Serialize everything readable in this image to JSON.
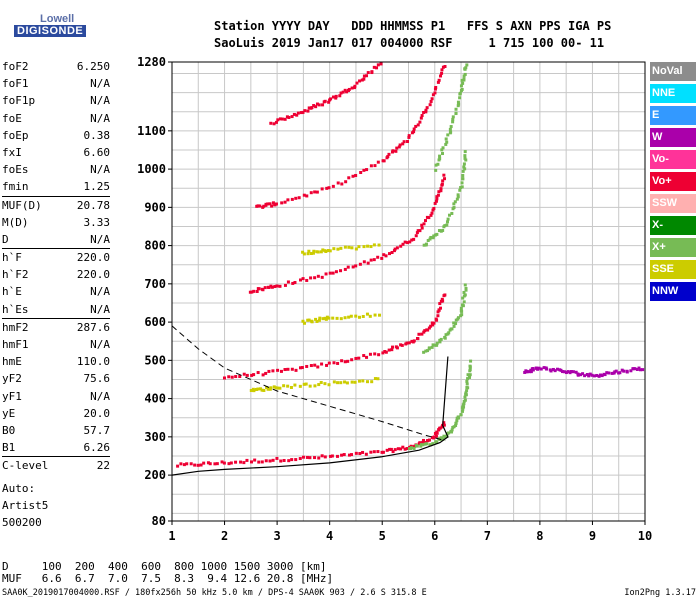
{
  "logo": {
    "line1": "Lowell",
    "line2": "DIGISONDE"
  },
  "header": {
    "line1": "Station YYYY DAY   DDD HHMMSS P1   FFS S AXN PPS IGA PS",
    "line2": "SaoLuis 2019 Jan17 017 004000 RSF     1 715 100 00- 11"
  },
  "params": [
    {
      "name": "foF2",
      "value": "6.250"
    },
    {
      "name": "foF1",
      "value": "N/A"
    },
    {
      "name": "foF1p",
      "value": "N/A"
    },
    {
      "name": "foE",
      "value": "N/A"
    },
    {
      "name": "foEp",
      "value": "0.38"
    },
    {
      "name": "fxI",
      "value": "6.60"
    },
    {
      "name": "foEs",
      "value": "N/A"
    },
    {
      "name": "fmin",
      "value": "1.25"
    },
    {
      "name": "MUF(D)",
      "value": "20.78",
      "sep": true
    },
    {
      "name": "M(D)",
      "value": "3.33"
    },
    {
      "name": "D",
      "value": "N/A"
    },
    {
      "name": "h`F",
      "value": "220.0",
      "sep": true
    },
    {
      "name": "h`F2",
      "value": "220.0"
    },
    {
      "name": "h`E",
      "value": "N/A"
    },
    {
      "name": "h`Es",
      "value": "N/A"
    },
    {
      "name": "hmF2",
      "value": "287.6",
      "sep": true
    },
    {
      "name": "hmF1",
      "value": "N/A"
    },
    {
      "name": "hmE",
      "value": "110.0"
    },
    {
      "name": "yF2",
      "value": "75.6"
    },
    {
      "name": "yF1",
      "value": "N/A"
    },
    {
      "name": "yE",
      "value": "20.0"
    },
    {
      "name": "B0",
      "value": "57.7"
    },
    {
      "name": "B1",
      "value": "6.26"
    },
    {
      "name": "C-level",
      "value": "22",
      "sep": true
    }
  ],
  "auto": [
    "Auto:",
    "Artist5",
    "500200"
  ],
  "legend": [
    {
      "label": "NoVal",
      "color": "#8c8c8c"
    },
    {
      "label": "NNE",
      "color": "#00e0ff"
    },
    {
      "label": "E",
      "color": "#3399ff"
    },
    {
      "label": "W",
      "color": "#aa00aa"
    },
    {
      "label": "Vo-",
      "color": "#ff3399"
    },
    {
      "label": "Vo+",
      "color": "#ee0033"
    },
    {
      "label": "SSW",
      "color": "#ffb0b0"
    },
    {
      "label": "X-",
      "color": "#008800"
    },
    {
      "label": "X+",
      "color": "#77bb55"
    },
    {
      "label": "SSE",
      "color": "#cccc00"
    },
    {
      "label": "NNW",
      "color": "#0000cc"
    }
  ],
  "footer": {
    "d_row": "D     100  200  400  600  800 1000 1500 3000 [km]",
    "muf_row": "MUF   6.6  6.7  7.0  7.5  8.3  9.4 12.6 20.8 [MHz]"
  },
  "bottom_line": "SAA0K_2019017004000.RSF / 180fx256h 50 kHz 5.0 km / DPS-4 SAA0K 903 / 2.6 S 315.8 E",
  "version": "Ion2Png 1.3.17",
  "chart_data": {
    "type": "scatter",
    "xlim": [
      1,
      10
    ],
    "ylim": [
      80,
      1280
    ],
    "x_ticks": [
      1,
      2,
      3,
      4,
      5,
      6,
      7,
      8,
      9,
      10
    ],
    "y_ticks": [
      80,
      200,
      300,
      400,
      500,
      600,
      700,
      800,
      900,
      1000,
      1100,
      1280
    ],
    "grid": true,
    "series": [
      {
        "name": "Vo+",
        "color": "#ee0033",
        "traces": [
          [
            [
              1.1,
              225
            ],
            [
              2,
              232
            ],
            [
              3,
              240
            ],
            [
              4,
              248
            ],
            [
              5,
              260
            ],
            [
              5.6,
              275
            ],
            [
              6.0,
              300
            ],
            [
              6.2,
              340
            ]
          ],
          [
            [
              2,
              455
            ],
            [
              3,
              470
            ],
            [
              4,
              490
            ],
            [
              5,
              520
            ],
            [
              5.6,
              550
            ],
            [
              6.0,
              600
            ],
            [
              6.2,
              680
            ]
          ],
          [
            [
              2.5,
              680
            ],
            [
              3,
              695
            ],
            [
              4,
              725
            ],
            [
              5,
              770
            ],
            [
              5.6,
              820
            ],
            [
              6.0,
              900
            ],
            [
              6.2,
              990
            ]
          ],
          [
            [
              2.6,
              900
            ],
            [
              3,
              910
            ],
            [
              4,
              950
            ],
            [
              5,
              1020
            ],
            [
              5.5,
              1080
            ],
            [
              5.9,
              1170
            ],
            [
              6.2,
              1280
            ]
          ],
          [
            [
              2.9,
              1120
            ],
            [
              3.5,
              1150
            ],
            [
              4,
              1180
            ],
            [
              4.5,
              1220
            ],
            [
              5,
              1280
            ]
          ]
        ]
      },
      {
        "name": "X+",
        "color": "#77bb55",
        "traces": [
          [
            [
              5.5,
              270
            ],
            [
              6,
              285
            ],
            [
              6.3,
              310
            ],
            [
              6.5,
              360
            ],
            [
              6.6,
              420
            ],
            [
              6.7,
              500
            ]
          ],
          [
            [
              5.8,
              520
            ],
            [
              6.2,
              560
            ],
            [
              6.5,
              620
            ],
            [
              6.6,
              700
            ]
          ],
          [
            [
              5.8,
              800
            ],
            [
              6.2,
              850
            ],
            [
              6.5,
              950
            ],
            [
              6.6,
              1050
            ]
          ],
          [
            [
              6.0,
              1000
            ],
            [
              6.3,
              1100
            ],
            [
              6.5,
              1200
            ],
            [
              6.6,
              1280
            ]
          ]
        ]
      },
      {
        "name": "SSE",
        "color": "#cccc00",
        "traces": [
          [
            [
              2.5,
              420
            ],
            [
              3,
              430
            ],
            [
              4,
              440
            ],
            [
              5,
              450
            ]
          ],
          [
            [
              3.5,
              600
            ],
            [
              4,
              610
            ],
            [
              5,
              620
            ]
          ],
          [
            [
              3.5,
              780
            ],
            [
              4,
              790
            ],
            [
              5,
              800
            ]
          ]
        ]
      },
      {
        "name": "W",
        "color": "#aa00aa",
        "traces": [
          [
            [
              7.7,
              470
            ],
            [
              8,
              480
            ],
            [
              8.5,
              470
            ],
            [
              9,
              460
            ],
            [
              9.5,
              470
            ],
            [
              10,
              480
            ]
          ]
        ]
      }
    ],
    "profile_curve": [
      [
        1,
        200
      ],
      [
        1.5,
        210
      ],
      [
        2,
        215
      ],
      [
        3,
        222
      ],
      [
        4,
        232
      ],
      [
        5,
        248
      ],
      [
        5.7,
        265
      ],
      [
        6.1,
        285
      ],
      [
        6.25,
        300
      ],
      [
        6.15,
        330
      ],
      [
        6.2,
        420
      ],
      [
        6.25,
        510
      ]
    ],
    "dashed_curve": [
      [
        1,
        590
      ],
      [
        1.5,
        530
      ],
      [
        2,
        480
      ],
      [
        3,
        420
      ],
      [
        4,
        380
      ],
      [
        5,
        340
      ],
      [
        5.8,
        305
      ],
      [
        6.2,
        290
      ]
    ]
  }
}
